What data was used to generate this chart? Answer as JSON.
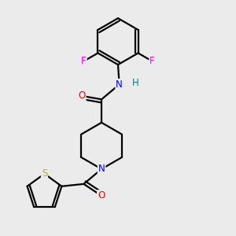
{
  "background_color": "#ebebeb",
  "bond_color": "#000000",
  "atom_colors": {
    "F": "#ff00ff",
    "N": "#0000ff",
    "O": "#ff0000",
    "S": "#ccaa00",
    "H": "#008080",
    "C": "#000000"
  },
  "figsize": [
    3.0,
    3.0
  ],
  "dpi": 100
}
